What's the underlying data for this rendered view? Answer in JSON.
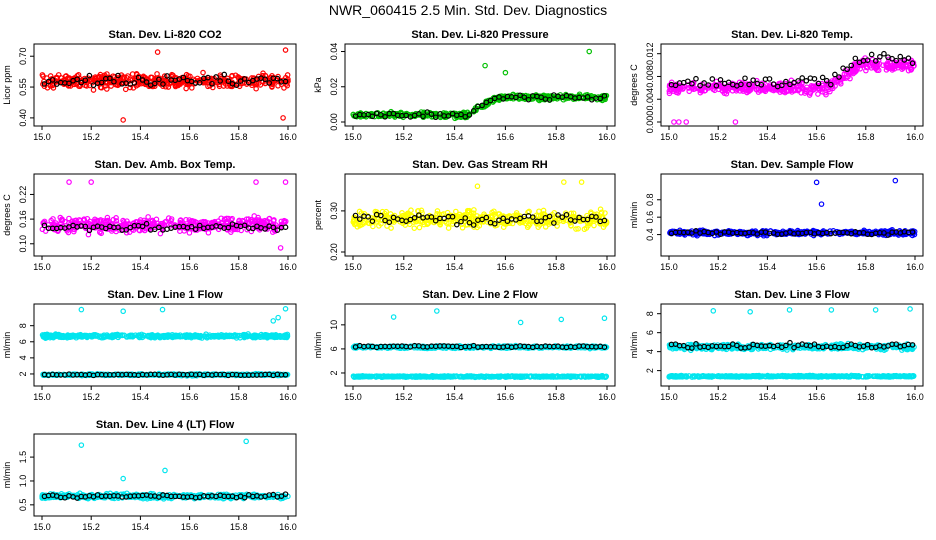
{
  "figure": {
    "title": "NWR_060415  2.5 Min. Std. Dev. Diagnostics"
  },
  "chart_data": [
    {
      "type": "scatter",
      "title": "Stan. Dev. Li-820 CO2",
      "ylabel": "Licor ppm",
      "xlabel": "",
      "xlim": [
        15.0,
        16.0
      ],
      "ylim": [
        0.38,
        0.74
      ],
      "xticks": [
        "15.0",
        "15.2",
        "15.4",
        "15.6",
        "15.8",
        "16.0"
      ],
      "yticks": [
        "0.40",
        "0.55",
        "0.70"
      ],
      "color": "#ff0000",
      "level": 0.58,
      "spread": 0.05,
      "outliers": [
        [
          15.33,
          0.39
        ],
        [
          15.98,
          0.4
        ],
        [
          15.99,
          0.73
        ],
        [
          15.47,
          0.72
        ]
      ],
      "black_level": 0.58,
      "black_spread": 0.04
    },
    {
      "type": "scatter",
      "title": "Stan. Dev. Li-820 Pressure",
      "ylabel": "kPa",
      "xlabel": "",
      "xlim": [
        15.0,
        16.0
      ],
      "ylim": [
        0.0,
        0.042
      ],
      "xticks": [
        "15.0",
        "15.2",
        "15.4",
        "15.6",
        "15.8",
        "16.0"
      ],
      "yticks": [
        "0.00",
        "0.02",
        "0.04"
      ],
      "color": "#00c000",
      "level": 0.004,
      "spread": 0.002,
      "level2": 0.014,
      "step_at": 15.45,
      "outliers": [
        [
          15.93,
          0.04
        ],
        [
          15.52,
          0.032
        ],
        [
          15.6,
          0.028
        ]
      ],
      "black_level": 0.004,
      "black_spread": 0.002
    },
    {
      "type": "scatter",
      "title": "Stan. Dev. Li-820 Temp.",
      "ylabel": "degrees C",
      "xlabel": "",
      "xlim": [
        15.0,
        16.0
      ],
      "ylim": [
        0.0,
        0.013
      ],
      "xticks": [
        "15.0",
        "15.2",
        "15.4",
        "15.6",
        "15.8",
        "16.0"
      ],
      "yticks": [
        "0.000",
        "0.004",
        "0.008",
        "0.012"
      ],
      "color": "#ff00ff",
      "level": 0.006,
      "spread": 0.0015,
      "level2": 0.01,
      "step_at": 15.65,
      "outliers": [
        [
          15.02,
          0.0
        ],
        [
          15.04,
          0.0
        ],
        [
          15.07,
          0.0
        ],
        [
          15.27,
          0.0
        ]
      ],
      "black_level": 0.007,
      "black_spread": 0.0015
    },
    {
      "type": "scatter",
      "title": "Stan. Dev. Amb. Box Temp.",
      "ylabel": "degrees C",
      "xlabel": "",
      "xlim": [
        15.0,
        16.0
      ],
      "ylim": [
        0.08,
        0.26
      ],
      "xticks": [
        "15.0",
        "15.2",
        "15.4",
        "15.6",
        "15.8",
        "16.0"
      ],
      "yticks": [
        "0.10",
        "0.16",
        "0.22"
      ],
      "color": "#ff00ff",
      "level": 0.145,
      "spread": 0.025,
      "outliers": [
        [
          15.11,
          0.25
        ],
        [
          15.2,
          0.25
        ],
        [
          15.87,
          0.25
        ],
        [
          15.99,
          0.25
        ],
        [
          15.97,
          0.09
        ]
      ],
      "black_level": 0.14,
      "black_spread": 0.012
    },
    {
      "type": "scatter",
      "title": "Stan. Dev. Gas Stream RH",
      "ylabel": "percent",
      "xlabel": "",
      "xlim": [
        15.0,
        16.0
      ],
      "ylim": [
        0.2,
        0.38
      ],
      "xticks": [
        "15.0",
        "15.2",
        "15.4",
        "15.6",
        "15.8",
        "16.0"
      ],
      "yticks": [
        "0.20",
        "0.30"
      ],
      "color": "#ffff00",
      "level": 0.28,
      "spread": 0.03,
      "outliers": [
        [
          15.83,
          0.37
        ],
        [
          15.49,
          0.36
        ],
        [
          15.9,
          0.37
        ]
      ],
      "black_level": 0.28,
      "black_spread": 0.02
    },
    {
      "type": "scatter",
      "title": "Stan. Dev. Sample Flow",
      "ylabel": "ml/min",
      "xlabel": "",
      "xlim": [
        15.0,
        16.0
      ],
      "ylim": [
        0.2,
        1.05
      ],
      "xticks": [
        "15.0",
        "15.2",
        "15.4",
        "15.6",
        "15.8",
        "16.0"
      ],
      "yticks": [
        "0.4",
        "0.6",
        "0.8"
      ],
      "color": "#0000ff",
      "level": 0.42,
      "spread": 0.04,
      "outliers": [
        [
          15.6,
          1.0
        ],
        [
          15.92,
          1.02
        ],
        [
          15.62,
          0.75
        ]
      ],
      "black_level": 0.42,
      "black_spread": 0.03
    },
    {
      "type": "scatter",
      "title": "Stan. Dev. Line 1 Flow",
      "ylabel": "ml/min",
      "xlabel": "",
      "xlim": [
        15.0,
        16.0
      ],
      "ylim": [
        1.0,
        10.2
      ],
      "xticks": [
        "15.0",
        "15.2",
        "15.4",
        "15.6",
        "15.8",
        "16.0"
      ],
      "yticks": [
        "2",
        "4",
        "6",
        "8"
      ],
      "color": "#00e5ee",
      "level": 6.7,
      "spread": 0.3,
      "level_b": 1.9,
      "spread_b": 0.15,
      "outliers": [
        [
          15.16,
          10.0
        ],
        [
          15.33,
          9.8
        ],
        [
          15.49,
          10.0
        ],
        [
          15.99,
          10.1
        ],
        [
          15.94,
          8.6
        ],
        [
          15.96,
          9.0
        ]
      ],
      "black_level": 1.9,
      "black_spread": 0.1
    },
    {
      "type": "scatter",
      "title": "Stan. Dev. Line 2 Flow",
      "ylabel": "ml/min",
      "xlabel": "",
      "xlim": [
        15.0,
        16.0
      ],
      "ylim": [
        0.5,
        12.8
      ],
      "xticks": [
        "15.0",
        "15.2",
        "15.4",
        "15.6",
        "15.8",
        "16.0"
      ],
      "yticks": [
        "2",
        "6",
        "10"
      ],
      "color": "#00e5ee",
      "level": 6.3,
      "spread": 0.3,
      "level_b": 1.4,
      "spread_b": 0.15,
      "outliers": [
        [
          15.16,
          11.3
        ],
        [
          15.33,
          12.3
        ],
        [
          15.66,
          10.4
        ],
        [
          15.82,
          10.9
        ],
        [
          15.99,
          11.1
        ]
      ],
      "black_level": 6.4,
      "black_spread": 0.2
    },
    {
      "type": "scatter",
      "title": "Stan. Dev. Line 3 Flow",
      "ylabel": "ml/min",
      "xlabel": "",
      "xlim": [
        15.0,
        16.0
      ],
      "ylim": [
        0.8,
        8.6
      ],
      "xticks": [
        "15.0",
        "15.2",
        "15.4",
        "15.6",
        "15.8",
        "16.0"
      ],
      "yticks": [
        "2",
        "4",
        "6",
        "8"
      ],
      "color": "#00e5ee",
      "level": 4.5,
      "spread": 0.4,
      "level_b": 1.4,
      "spread_b": 0.1,
      "outliers": [
        [
          15.18,
          8.3
        ],
        [
          15.33,
          8.2
        ],
        [
          15.49,
          8.4
        ],
        [
          15.66,
          8.4
        ],
        [
          15.84,
          8.4
        ],
        [
          15.98,
          8.5
        ]
      ],
      "black_level": 4.6,
      "black_spread": 0.4
    },
    {
      "type": "scatter",
      "title": "Stan. Dev. Line 4 (LT) Flow",
      "ylabel": "ml/min",
      "xlabel": "",
      "xlim": [
        15.0,
        16.0
      ],
      "ylim": [
        0.35,
        1.9
      ],
      "xticks": [
        "15.0",
        "15.2",
        "15.4",
        "15.6",
        "15.8",
        "16.0"
      ],
      "yticks": [
        "0.5",
        "1.0",
        "1.5"
      ],
      "color": "#00e5ee",
      "level": 0.68,
      "spread": 0.07,
      "outliers": [
        [
          15.16,
          1.75
        ],
        [
          15.5,
          1.22
        ],
        [
          15.33,
          1.05
        ],
        [
          15.83,
          1.83
        ]
      ],
      "black_level": 0.68,
      "black_spread": 0.05
    }
  ]
}
